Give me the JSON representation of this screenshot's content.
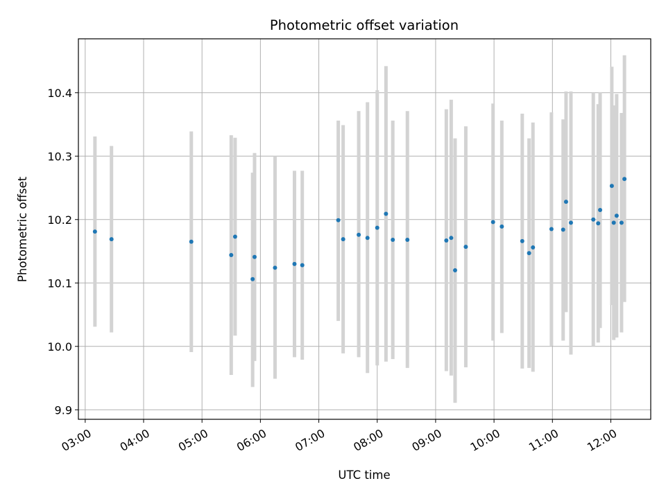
{
  "chart_data": {
    "type": "scatter",
    "title": "Photometric offset variation",
    "xlabel": "UTC time",
    "ylabel": "Photometric offset",
    "grid": true,
    "x_tick_labels": [
      "03:00",
      "04:00",
      "05:00",
      "06:00",
      "07:00",
      "08:00",
      "09:00",
      "10:00",
      "11:00",
      "12:00"
    ],
    "y_tick_labels": [
      "9.9",
      "10.0",
      "10.1",
      "10.2",
      "10.3",
      "10.4"
    ],
    "xlim": [
      "02:53",
      "12:41"
    ],
    "ylim": [
      9.885,
      10.485
    ],
    "colors": {
      "points": "#1f77b4",
      "error_bars": "#d3d3d3",
      "grid": "#b0b0b0"
    },
    "series": [
      {
        "points": [
          {
            "x": "03:10",
            "y": 10.181,
            "lo": 10.031,
            "hi": 10.331
          },
          {
            "x": "03:27",
            "y": 10.169,
            "lo": 10.022,
            "hi": 10.316
          },
          {
            "x": "04:49",
            "y": 10.165,
            "lo": 9.991,
            "hi": 10.339
          },
          {
            "x": "05:30",
            "y": 10.144,
            "lo": 9.955,
            "hi": 10.333
          },
          {
            "x": "05:34",
            "y": 10.173,
            "lo": 10.017,
            "hi": 10.329
          },
          {
            "x": "05:52",
            "y": 10.106,
            "lo": 9.936,
            "hi": 10.274
          },
          {
            "x": "05:54",
            "y": 10.141,
            "lo": 9.977,
            "hi": 10.305
          },
          {
            "x": "06:15",
            "y": 10.124,
            "lo": 9.949,
            "hi": 10.3
          },
          {
            "x": "06:35",
            "y": 10.13,
            "lo": 9.983,
            "hi": 10.277
          },
          {
            "x": "06:43",
            "y": 10.128,
            "lo": 9.979,
            "hi": 10.277
          },
          {
            "x": "07:20",
            "y": 10.199,
            "lo": 10.04,
            "hi": 10.356
          },
          {
            "x": "07:25",
            "y": 10.169,
            "lo": 9.989,
            "hi": 10.349
          },
          {
            "x": "07:41",
            "y": 10.176,
            "lo": 9.983,
            "hi": 10.371
          },
          {
            "x": "07:50",
            "y": 10.171,
            "lo": 9.958,
            "hi": 10.385
          },
          {
            "x": "08:00",
            "y": 10.187,
            "lo": 9.97,
            "hi": 10.404
          },
          {
            "x": "08:09",
            "y": 10.209,
            "lo": 9.976,
            "hi": 10.442
          },
          {
            "x": "08:16",
            "y": 10.168,
            "lo": 9.98,
            "hi": 10.356
          },
          {
            "x": "08:31",
            "y": 10.168,
            "lo": 9.966,
            "hi": 10.371
          },
          {
            "x": "09:11",
            "y": 10.167,
            "lo": 9.961,
            "hi": 10.374
          },
          {
            "x": "09:16",
            "y": 10.171,
            "lo": 9.954,
            "hi": 10.389
          },
          {
            "x": "09:20",
            "y": 10.12,
            "lo": 9.911,
            "hi": 10.328
          },
          {
            "x": "09:31",
            "y": 10.157,
            "lo": 9.967,
            "hi": 10.347
          },
          {
            "x": "09:59",
            "y": 10.196,
            "lo": 10.009,
            "hi": 10.383
          },
          {
            "x": "10:08",
            "y": 10.189,
            "lo": 10.021,
            "hi": 10.356
          },
          {
            "x": "10:29",
            "y": 10.166,
            "lo": 9.965,
            "hi": 10.367
          },
          {
            "x": "10:36",
            "y": 10.147,
            "lo": 9.966,
            "hi": 10.328
          },
          {
            "x": "10:40",
            "y": 10.156,
            "lo": 9.96,
            "hi": 10.353
          },
          {
            "x": "10:59",
            "y": 10.185,
            "lo": 10.001,
            "hi": 10.369
          },
          {
            "x": "11:11",
            "y": 10.184,
            "lo": 10.009,
            "hi": 10.358
          },
          {
            "x": "11:14",
            "y": 10.228,
            "lo": 10.054,
            "hi": 10.402
          },
          {
            "x": "11:19",
            "y": 10.195,
            "lo": 9.987,
            "hi": 10.402
          },
          {
            "x": "11:42",
            "y": 10.2,
            "lo": 10.0,
            "hi": 10.4
          },
          {
            "x": "11:47",
            "y": 10.194,
            "lo": 10.006,
            "hi": 10.382
          },
          {
            "x": "11:49",
            "y": 10.215,
            "lo": 10.029,
            "hi": 10.401
          },
          {
            "x": "12:01",
            "y": 10.253,
            "lo": 10.065,
            "hi": 10.441
          },
          {
            "x": "12:03",
            "y": 10.195,
            "lo": 10.01,
            "hi": 10.38
          },
          {
            "x": "12:06",
            "y": 10.206,
            "lo": 10.014,
            "hi": 10.398
          },
          {
            "x": "12:11",
            "y": 10.195,
            "lo": 10.022,
            "hi": 10.368
          },
          {
            "x": "12:14",
            "y": 10.264,
            "lo": 10.07,
            "hi": 10.459
          }
        ]
      }
    ]
  }
}
